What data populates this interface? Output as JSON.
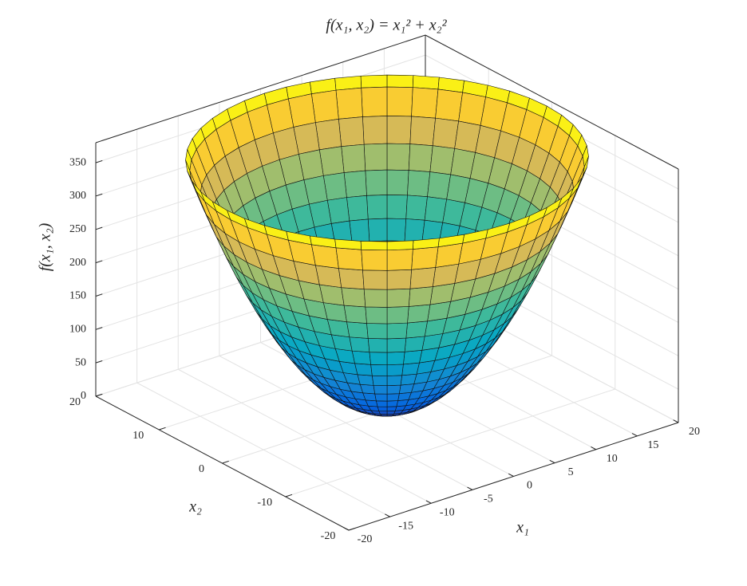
{
  "chart_data": {
    "type": "surface",
    "title": "f(x₁, x₂) = x₁² + x₂²",
    "xlabel": "x₁",
    "ylabel": "x₂",
    "zlabel": "f(x₁, x₂)",
    "xlim": [
      -20,
      20
    ],
    "ylim": [
      -20,
      20
    ],
    "zlim": [
      0,
      380
    ],
    "xticks": [
      -20,
      -15,
      -10,
      -5,
      0,
      5,
      10,
      15,
      20
    ],
    "yticks": [
      -20,
      -10,
      0,
      10,
      20
    ],
    "zticks": [
      0,
      50,
      100,
      150,
      200,
      250,
      300,
      350
    ],
    "grid": true,
    "colormap": "parula",
    "surface": {
      "r": [
        0,
        1,
        2,
        3,
        4,
        5,
        6,
        7,
        8,
        9,
        10,
        11,
        12,
        13,
        14,
        15,
        16,
        17,
        18,
        19,
        19.4
      ],
      "theta": [
        0,
        7.5,
        15,
        22.5,
        30,
        37.5,
        45,
        52.5,
        60,
        67.5,
        75,
        82.5,
        90,
        97.5,
        105,
        112.5,
        120,
        127.5,
        135,
        142.5,
        150,
        157.5,
        165,
        172.5,
        180,
        187.5,
        195,
        202.5,
        210,
        217.5,
        225,
        232.5,
        240,
        247.5,
        255,
        262.5,
        270,
        277.5,
        285,
        292.5,
        300,
        307.5,
        315,
        322.5,
        330,
        337.5,
        345,
        352.5
      ],
      "z": [
        0,
        1,
        4,
        9,
        16,
        25,
        36,
        49,
        64,
        81,
        100,
        121,
        144,
        169,
        196,
        225,
        256,
        289,
        324,
        361,
        376.36
      ]
    }
  }
}
